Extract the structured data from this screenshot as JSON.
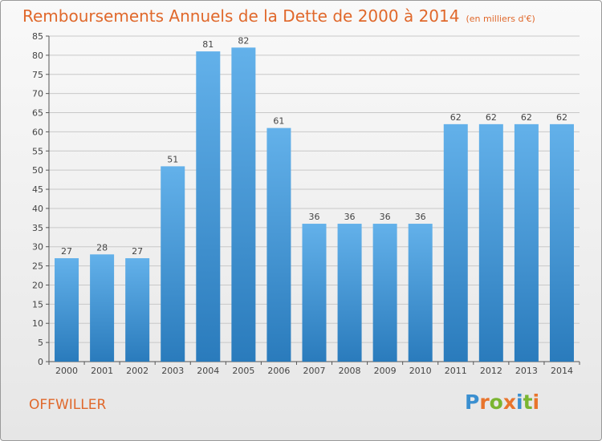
{
  "commune": "OFFWILLER",
  "logo": {
    "letters": [
      {
        "char": "P",
        "color": "#3a8fd0"
      },
      {
        "char": "r",
        "color": "#e8742c"
      },
      {
        "char": "o",
        "color": "#7ab531"
      },
      {
        "char": "x",
        "color": "#e8742c"
      },
      {
        "char": "i",
        "color": "#3a8fd0"
      },
      {
        "char": "t",
        "color": "#7ab531"
      },
      {
        "char": "i",
        "color": "#e8742c"
      }
    ]
  },
  "colors": {
    "title": "#e0682b",
    "bar_light": "#63b1ea",
    "bar_dark": "#2a7bbc",
    "grid": "#c8c8c8"
  },
  "chart_data": {
    "type": "bar",
    "title": "Remboursements Annuels de la Dette de 2000 à 2014",
    "unit": "(en milliers d'€)",
    "categories": [
      "2000",
      "2001",
      "2002",
      "2003",
      "2004",
      "2005",
      "2006",
      "2007",
      "2008",
      "2009",
      "2010",
      "2011",
      "2012",
      "2013",
      "2014"
    ],
    "values": [
      27,
      28,
      27,
      51,
      81,
      82,
      61,
      36,
      36,
      36,
      36,
      62,
      62,
      62,
      62
    ],
    "data_labels": [
      "27",
      "28",
      "27",
      "51",
      "81",
      "82",
      "61",
      "36",
      "36",
      "36",
      "36",
      "62",
      "62",
      "62",
      "62"
    ],
    "yticks": [
      "0",
      "5",
      "10",
      "15",
      "20",
      "25",
      "30",
      "35",
      "40",
      "45",
      "50",
      "55",
      "60",
      "65",
      "70",
      "75",
      "80",
      "85"
    ],
    "ylim": [
      0,
      85
    ],
    "grid": true,
    "legend": "none"
  }
}
